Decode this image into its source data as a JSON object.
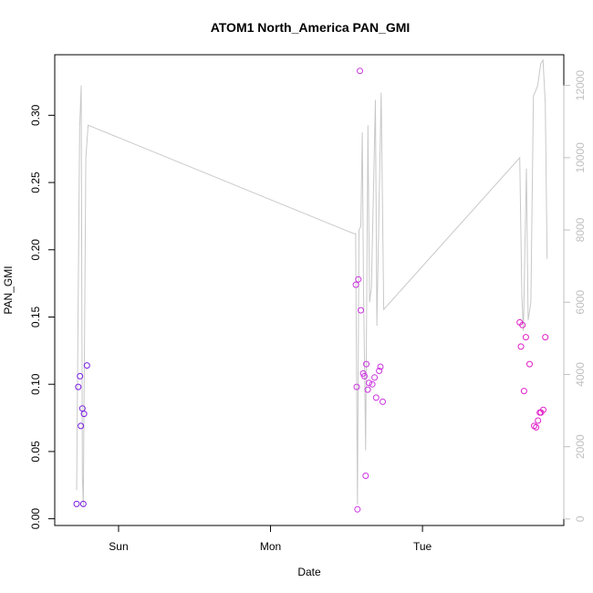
{
  "chart_data": {
    "type": "scatter",
    "title": "ATOM1 North_America PAN_GMI",
    "xlabel": "Date",
    "ylabel": "PAN_GMI",
    "x_ticks": [
      {
        "label": "Sun",
        "value": 1.0
      },
      {
        "label": "Mon",
        "value": 2.0
      },
      {
        "label": "Tue",
        "value": 3.0
      }
    ],
    "xlim": [
      0.58,
      3.93
    ],
    "ylim": [
      -0.005,
      0.345
    ],
    "y_ticks": [
      0.0,
      0.05,
      0.1,
      0.15,
      0.2,
      0.25,
      0.3
    ],
    "y_tick_labels": [
      "0.00",
      "0.05",
      "0.10",
      "0.15",
      "0.20",
      "0.25",
      "0.30"
    ],
    "secondary_axis": {
      "ylim": [
        -180,
        12850
      ],
      "ticks": [
        0,
        2000,
        4000,
        6000,
        8000,
        10000,
        12000
      ],
      "tick_labels": [
        "0",
        "2000",
        "4000",
        "6000",
        "8000",
        "10000",
        "12000"
      ],
      "color": "#bfbfbf"
    },
    "grid": false,
    "series": [
      {
        "color": "#7a1fe0",
        "points": [
          [
            0.724,
            0.011
          ],
          [
            0.735,
            0.098
          ],
          [
            0.746,
            0.106
          ],
          [
            0.752,
            0.069
          ],
          [
            0.762,
            0.082
          ],
          [
            0.768,
            0.011
          ],
          [
            0.773,
            0.078
          ],
          [
            0.792,
            0.114
          ]
        ]
      },
      {
        "color": "#cc33e0",
        "points": [
          [
            2.562,
            0.174
          ],
          [
            2.567,
            0.098
          ],
          [
            2.572,
            0.007
          ],
          [
            2.578,
            0.178
          ],
          [
            2.588,
            0.333
          ],
          [
            2.594,
            0.155
          ],
          [
            2.61,
            0.108
          ],
          [
            2.618,
            0.106
          ],
          [
            2.626,
            0.032
          ],
          [
            2.63,
            0.115
          ],
          [
            2.64,
            0.096
          ],
          [
            2.648,
            0.101
          ],
          [
            2.67,
            0.1
          ],
          [
            2.685,
            0.105
          ],
          [
            2.695,
            0.09
          ],
          [
            2.715,
            0.11
          ],
          [
            2.723,
            0.113
          ],
          [
            2.738,
            0.087
          ]
        ]
      },
      {
        "color": "#e020c8",
        "points": [
          [
            3.64,
            0.146
          ],
          [
            3.648,
            0.128
          ],
          [
            3.658,
            0.144
          ],
          [
            3.668,
            0.095
          ],
          [
            3.68,
            0.135
          ],
          [
            3.705,
            0.115
          ],
          [
            3.735,
            0.069
          ],
          [
            3.748,
            0.068
          ],
          [
            3.76,
            0.073
          ],
          [
            3.772,
            0.079
          ],
          [
            3.78,
            0.079
          ],
          [
            3.795,
            0.081
          ],
          [
            3.808,
            0.135
          ]
        ]
      }
    ],
    "line_series": {
      "axis": "secondary",
      "color": "#c8c8c8",
      "points": [
        [
          0.724,
          800
        ],
        [
          0.734,
          6000
        ],
        [
          0.744,
          10800
        ],
        [
          0.754,
          12000
        ],
        [
          0.762,
          1200
        ],
        [
          0.768,
          350
        ],
        [
          0.775,
          4400
        ],
        [
          0.785,
          10000
        ],
        [
          0.8,
          10900
        ],
        [
          2.546,
          7900
        ],
        [
          2.56,
          7900
        ],
        [
          2.572,
          400
        ],
        [
          2.582,
          8000
        ],
        [
          2.594,
          8100
        ],
        [
          2.604,
          10700
        ],
        [
          2.612,
          6300
        ],
        [
          2.626,
          1900
        ],
        [
          2.641,
          10900
        ],
        [
          2.652,
          6000
        ],
        [
          2.664,
          6400
        ],
        [
          2.69,
          11600
        ],
        [
          2.7,
          5350
        ],
        [
          2.728,
          11800
        ],
        [
          2.745,
          5800
        ],
        [
          3.64,
          10000
        ],
        [
          3.654,
          6200
        ],
        [
          3.664,
          5200
        ],
        [
          3.684,
          9700
        ],
        [
          3.695,
          5500
        ],
        [
          3.713,
          6000
        ],
        [
          3.73,
          11700
        ],
        [
          3.758,
          12000
        ],
        [
          3.778,
          12600
        ],
        [
          3.793,
          12700
        ],
        [
          3.808,
          11500
        ],
        [
          3.82,
          7200
        ]
      ]
    }
  }
}
